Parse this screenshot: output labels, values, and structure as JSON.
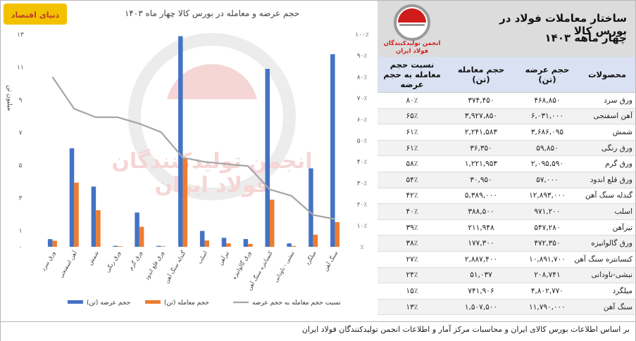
{
  "brand": {
    "logo_text": "دنیای اقتصاد"
  },
  "header": {
    "title_line1": "ساختار معاملات فولاد در بورس کالا",
    "title_line2": "چهار ماهه ۱۴۰۳",
    "logo_line1": "انجمن تولیدکنندگان",
    "logo_line2": "فولاد ایران"
  },
  "watermark": {
    "line1": "انجمن تولیدکنندگان",
    "line2": "فولاد ایران"
  },
  "table": {
    "headers": {
      "product": "محصولات",
      "offer": "حجم عرضه (تن)",
      "trade": "حجم معامله (تن)",
      "ratio": "نسبت حجم معامله به حجم عرضه"
    },
    "rows": [
      {
        "product": "ورق سرد",
        "offer": "۴۶۸,۸۵۰",
        "trade": "۳۷۴,۴۵۰",
        "ratio": "۸۰٪"
      },
      {
        "product": "آهن اسفنجی",
        "offer": "۶,۰۳۱,۰۰۰",
        "trade": "۳,۹۲۷,۸۵۰",
        "ratio": "۶۵٪"
      },
      {
        "product": "شمش",
        "offer": "۳,۶۸۶,۰۹۵",
        "trade": "۲,۲۴۱,۵۸۳",
        "ratio": "۶۱٪"
      },
      {
        "product": "ورق رنگی",
        "offer": "۵۹,۸۵۰",
        "trade": "۳۶,۳۵۰",
        "ratio": "۶۱٪"
      },
      {
        "product": "ورق گرم",
        "offer": "۲,۰۹۵,۵۹۰",
        "trade": "۱,۲۲۱,۹۵۳",
        "ratio": "۵۸٪"
      },
      {
        "product": "ورق قلع اندود",
        "offer": "۵۷,۰۰۰",
        "trade": "۳۰,۹۵۰",
        "ratio": "۵۴٪"
      },
      {
        "product": "گندله سنگ آهن",
        "offer": "۱۲,۸۹۳,۰۰۰",
        "trade": "۵,۳۸۹,۰۰۰",
        "ratio": "۴۲٪"
      },
      {
        "product": "اسلب",
        "offer": "۹۷۱,۲۰۰",
        "trade": "۳۸۸,۵۰۰",
        "ratio": "۴۰٪"
      },
      {
        "product": "تیرآهن",
        "offer": "۵۴۷,۲۸۰",
        "trade": "۲۱۱,۹۴۸",
        "ratio": "۳۹٪"
      },
      {
        "product": "ورق گالوانیزه",
        "offer": "۴۷۲,۳۵۰",
        "trade": "۱۷۷,۳۰۰",
        "ratio": "۳۸٪"
      },
      {
        "product": "کنسانتره سنگ آهن",
        "offer": "۱۰,۸۹۱,۷۰۰",
        "trade": "۲,۸۸۷,۴۰۰",
        "ratio": "۲۷٪"
      },
      {
        "product": "نبشی-ناودانی",
        "offer": "۲۰۸,۷۴۱",
        "trade": "۵۱,۰۳۷",
        "ratio": "۲۴٪"
      },
      {
        "product": "میلگرد",
        "offer": "۴,۸۰۲,۷۷۰",
        "trade": "۷۴۱,۹۰۶",
        "ratio": "۱۵٪"
      },
      {
        "product": "سنگ آهن",
        "offer": "۱۱,۷۹۰,۰۰۰",
        "trade": "۱,۵۰۷,۵۰۰",
        "ratio": "۱۳٪"
      }
    ]
  },
  "source": "بر اساس اطلاعات بورس کالای ایران و محاسبات مرکز آمار و اطلاعات انجمن تولیدکنندگان فولاد ایران",
  "chart_data": {
    "type": "bar",
    "title": "حجم عرضه و معامله در بورس کالا  چهار ماه ۱۴۰۳",
    "ylabel_left": "میلیون تن",
    "categories": [
      "ورق سرد",
      "آهن اسفنجی",
      "شمش",
      "ورق رنگی",
      "ورق گرم",
      "ورق قلع اندود",
      "گندله سنگ آهن",
      "اسلب",
      "تیرآهن",
      "ورق گالوانیزه",
      "کنسانتره سنگ آهن",
      "نبشی - ناودانی",
      "میلگرد",
      "سنگ آهن"
    ],
    "series": [
      {
        "name": "حجم عرضه (تن)",
        "axis": "left",
        "color": "#4472c4",
        "values": [
          468850,
          6031000,
          3686095,
          59850,
          2095590,
          57000,
          12893000,
          971200,
          547280,
          472350,
          10891700,
          208741,
          4802770,
          11790000
        ]
      },
      {
        "name": "حجم معامله (تن)",
        "axis": "left",
        "color": "#ed7d31",
        "values": [
          374450,
          3927850,
          2241583,
          36350,
          1221953,
          30950,
          5389000,
          388500,
          211948,
          177300,
          2887400,
          51037,
          741906,
          1507500
        ]
      },
      {
        "name": "نسبت حجم معامله به حجم عرضه",
        "axis": "right",
        "type": "line",
        "color": "#a5a5a5",
        "values": [
          80,
          65,
          61,
          61,
          58,
          54,
          42,
          40,
          39,
          38,
          27,
          24,
          15,
          13
        ]
      }
    ],
    "ylim_left": [
      0,
      13000000
    ],
    "yticks_left": [
      "۰",
      "۱",
      "۳",
      "۵",
      "۷",
      "۹",
      "۱۱",
      "۱۳"
    ],
    "ylim_right": [
      0,
      100
    ],
    "yticks_right": [
      "٪",
      "۱۰٪",
      "۲۰٪",
      "۳۰٪",
      "۴۰٪",
      "۵۰٪",
      "۶۰٪",
      "۷۰٪",
      "۸۰٪",
      "۹۰٪",
      "۱۰۰٪"
    ],
    "legend_position": "bottom",
    "grid": false
  }
}
